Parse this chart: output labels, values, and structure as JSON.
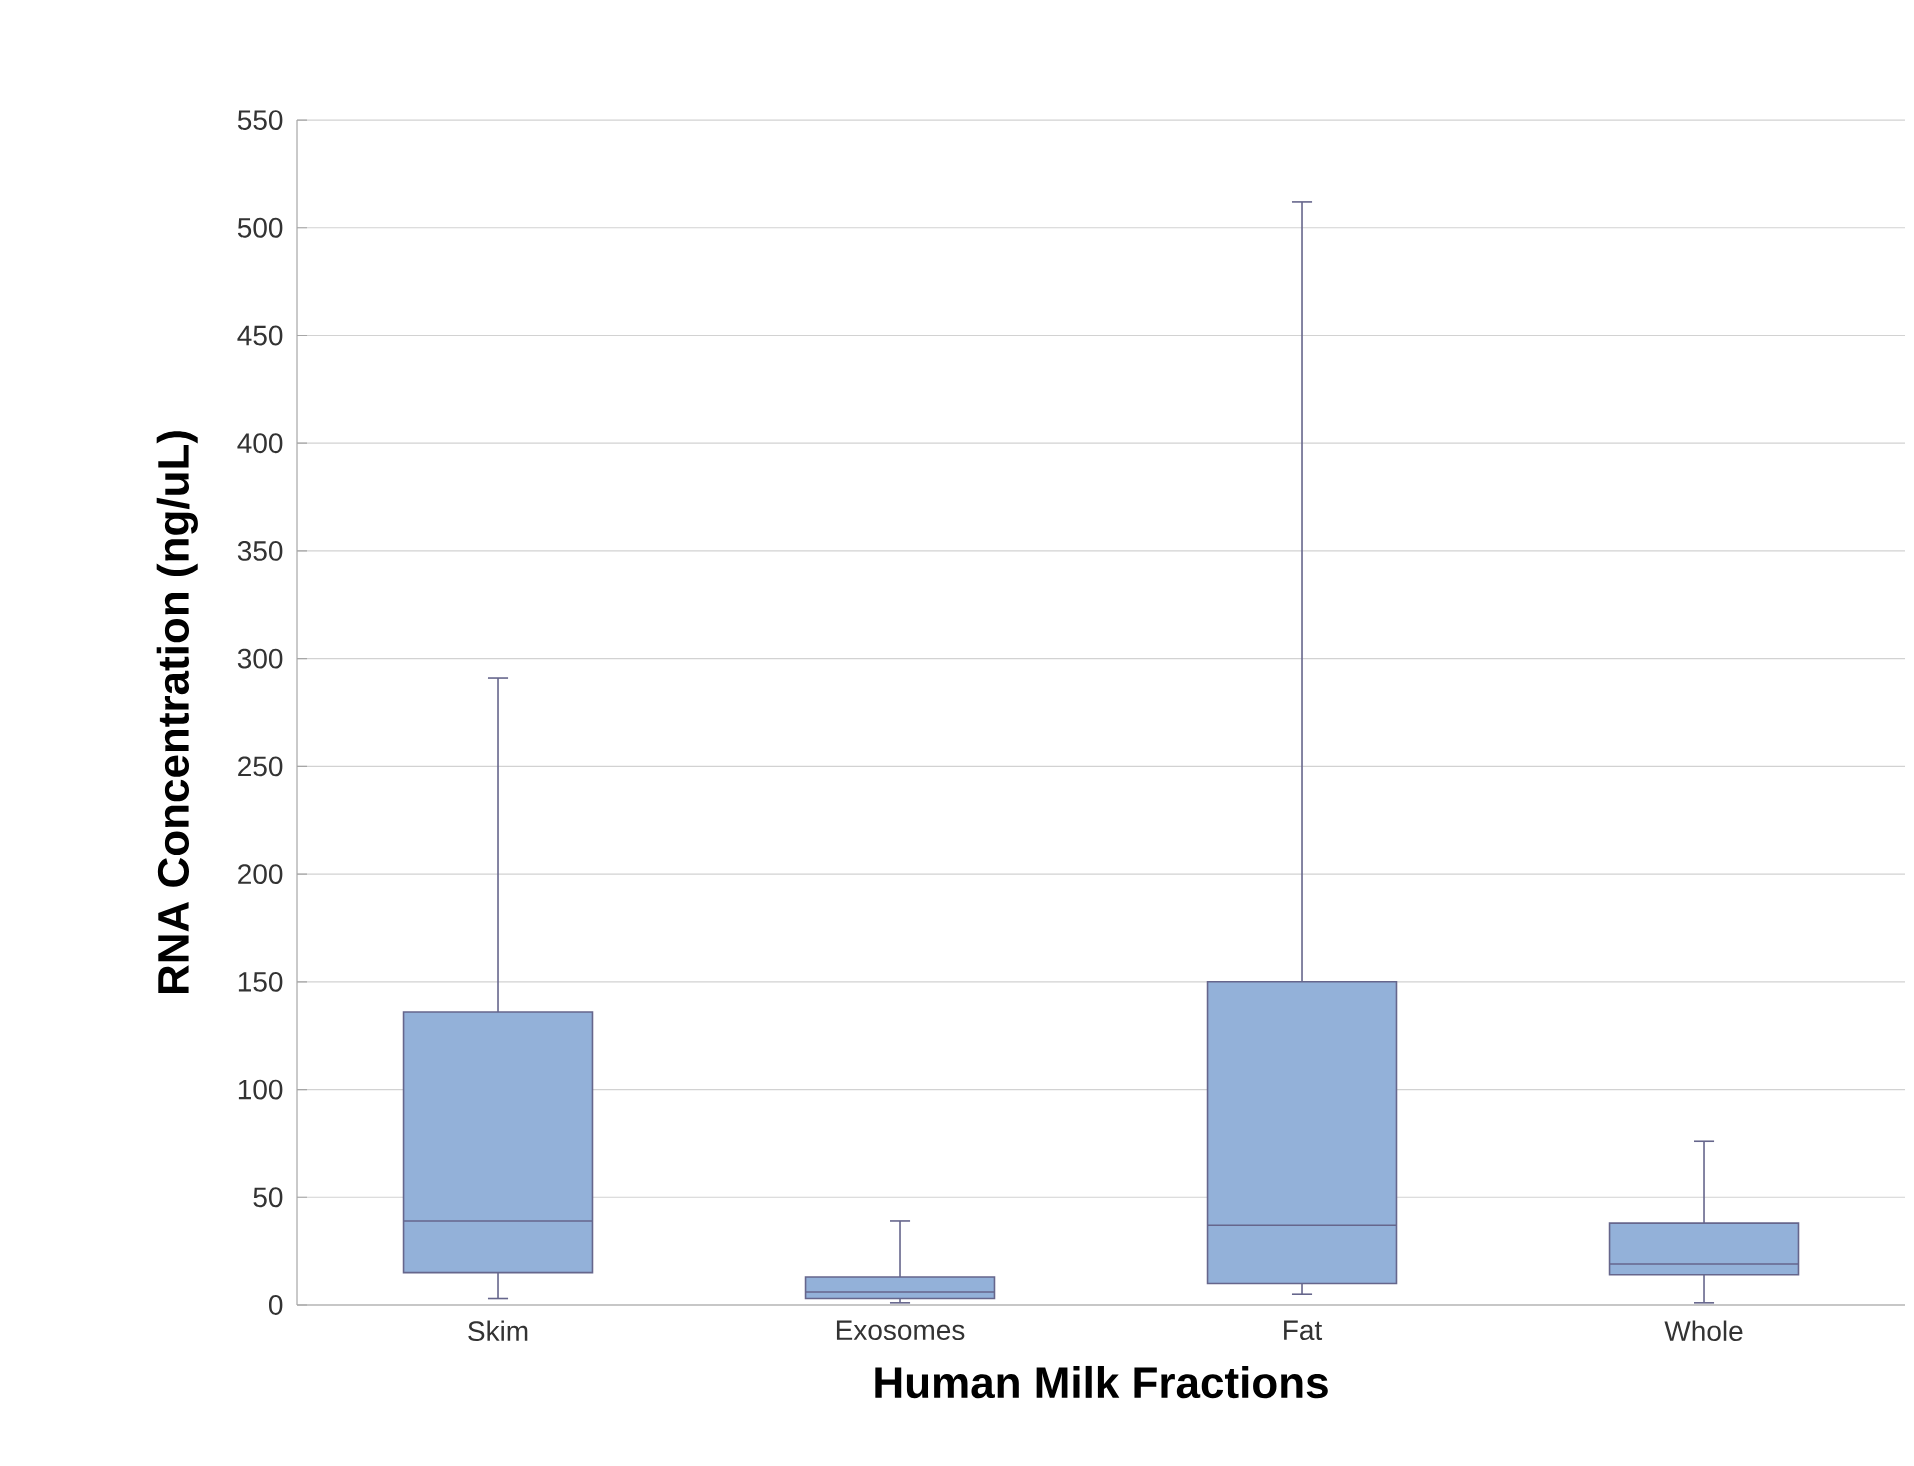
{
  "chart_data": {
    "type": "box",
    "xlabel": "Human Milk Fractions",
    "ylabel": "RNA Concentration (ng/uL)",
    "categories": [
      "Skim",
      "Exosomes",
      "Fat",
      "Whole"
    ],
    "boxes": [
      {
        "low": 3,
        "q1": 15,
        "median": 39,
        "q3": 136,
        "high": 291
      },
      {
        "low": 1,
        "q1": 3,
        "median": 6,
        "q3": 13,
        "high": 39
      },
      {
        "low": 5,
        "q1": 10,
        "median": 37,
        "q3": 150,
        "high": 512
      },
      {
        "low": 1,
        "q1": 14,
        "median": 19,
        "q3": 38,
        "high": 76
      }
    ],
    "color": "#93b1d9",
    "ylim": [
      0,
      550
    ],
    "yticks": [
      0,
      50,
      100,
      150,
      200,
      250,
      300,
      350,
      400,
      450,
      500,
      550
    ],
    "grid": "y"
  }
}
